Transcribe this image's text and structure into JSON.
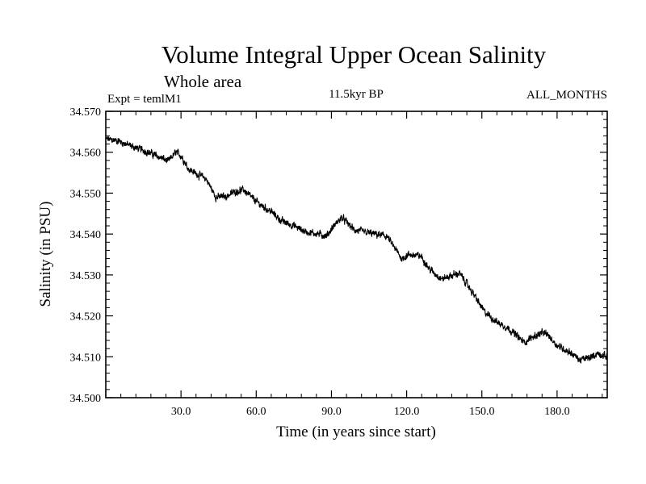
{
  "chart_data": {
    "type": "line",
    "title": "Volume Integral Upper Ocean Salinity",
    "subtitle": "Whole area",
    "experiment_label": "Expt = temlM1",
    "period_label": "11.5kyr BP",
    "months_label": "ALL_MONTHS",
    "xlabel": "Time (in years since start)",
    "ylabel": "Salinity (in PSU)",
    "xlim": [
      0,
      200
    ],
    "ylim": [
      34.5,
      34.57
    ],
    "xticks": [
      30,
      60,
      90,
      120,
      150,
      180
    ],
    "xtick_labels": [
      "30.0",
      "60.0",
      "90.0",
      "120.0",
      "150.0",
      "180.0"
    ],
    "yticks": [
      34.5,
      34.51,
      34.52,
      34.53,
      34.54,
      34.55,
      34.56,
      34.57
    ],
    "ytick_labels": [
      "34.500",
      "34.510",
      "34.520",
      "34.530",
      "34.540",
      "34.550",
      "34.560",
      "34.570"
    ],
    "grid": false,
    "series": [
      {
        "name": "salinity",
        "noise_amplitude": 0.0009,
        "x": [
          0,
          5,
          10,
          15,
          20,
          25,
          28,
          30,
          33,
          36,
          40,
          44,
          48,
          52,
          55,
          58,
          62,
          66,
          70,
          75,
          80,
          85,
          88,
          91,
          94,
          96,
          99,
          103,
          107,
          112,
          118,
          121,
          126,
          129,
          134,
          141,
          146,
          151,
          156,
          161,
          165,
          167,
          170,
          174,
          176,
          180,
          186,
          189,
          193,
          196,
          200
        ],
        "values": [
          34.5632,
          34.5628,
          34.5615,
          34.5605,
          34.5592,
          34.5578,
          34.56,
          34.5592,
          34.556,
          34.5548,
          34.5535,
          34.549,
          34.5492,
          34.5505,
          34.5508,
          34.549,
          34.547,
          34.5455,
          34.5432,
          34.542,
          34.5405,
          34.54,
          34.5395,
          34.542,
          34.544,
          34.543,
          34.541,
          34.5405,
          34.54,
          34.5395,
          34.534,
          34.535,
          34.5345,
          34.5315,
          34.529,
          34.5305,
          34.526,
          34.521,
          34.5185,
          34.5168,
          34.5145,
          34.5135,
          34.5148,
          34.5158,
          34.5155,
          34.5128,
          34.5108,
          34.5092,
          34.5098,
          34.5108,
          34.51
        ]
      }
    ]
  }
}
